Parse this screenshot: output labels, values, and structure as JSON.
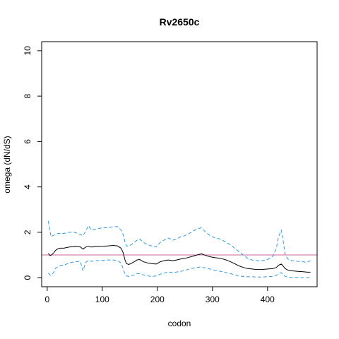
{
  "chart_data": {
    "type": "line",
    "title": "Rv2650c",
    "xlabel": "codon",
    "ylabel": "omega (dN/dS)",
    "xlim": [
      -10,
      490
    ],
    "ylim": [
      -0.4,
      10.4
    ],
    "xticks": [
      0,
      100,
      200,
      300,
      400
    ],
    "yticks": [
      0,
      2,
      4,
      6,
      8,
      10
    ],
    "reference_line": {
      "y": 1,
      "color": "#cc6699"
    },
    "grid": false,
    "series": [
      {
        "role": "estimate",
        "color": "#000000",
        "style": "solid",
        "x": [
          2,
          5,
          8,
          12,
          15,
          20,
          25,
          30,
          40,
          50,
          60,
          65,
          70,
          75,
          80,
          90,
          100,
          110,
          120,
          128,
          134,
          138,
          141,
          144,
          148,
          152,
          158,
          163,
          168,
          175,
          182,
          190,
          198,
          205,
          212,
          220,
          228,
          235,
          242,
          250,
          258,
          265,
          272,
          280,
          288,
          296,
          305,
          315,
          325,
          333,
          340,
          348,
          356,
          364,
          372,
          380,
          390,
          400,
          410,
          416,
          420,
          425,
          428,
          432,
          437,
          445,
          455,
          465,
          472,
          478
        ],
        "y": [
          1.07,
          0.98,
          1.0,
          1.1,
          1.2,
          1.28,
          1.3,
          1.3,
          1.35,
          1.37,
          1.36,
          1.26,
          1.35,
          1.38,
          1.35,
          1.37,
          1.38,
          1.4,
          1.42,
          1.4,
          1.3,
          1.1,
          0.8,
          0.62,
          0.58,
          0.62,
          0.7,
          0.78,
          0.8,
          0.7,
          0.65,
          0.62,
          0.6,
          0.7,
          0.75,
          0.78,
          0.75,
          0.78,
          0.82,
          0.85,
          0.9,
          0.95,
          1.0,
          1.05,
          0.98,
          0.92,
          0.88,
          0.85,
          0.78,
          0.7,
          0.62,
          0.52,
          0.45,
          0.4,
          0.38,
          0.36,
          0.36,
          0.38,
          0.4,
          0.45,
          0.55,
          0.6,
          0.52,
          0.4,
          0.33,
          0.3,
          0.28,
          0.26,
          0.24,
          0.24
        ]
      },
      {
        "role": "upper",
        "color": "#3399dd",
        "style": "dashed",
        "x": [
          2,
          4,
          7,
          10,
          15,
          20,
          25,
          30,
          40,
          50,
          60,
          65,
          70,
          75,
          80,
          90,
          100,
          110,
          120,
          128,
          134,
          138,
          141,
          144,
          148,
          152,
          158,
          163,
          168,
          175,
          182,
          190,
          198,
          205,
          212,
          220,
          228,
          235,
          242,
          250,
          258,
          265,
          272,
          280,
          288,
          296,
          305,
          315,
          325,
          333,
          340,
          348,
          356,
          364,
          372,
          380,
          390,
          400,
          410,
          416,
          420,
          425,
          428,
          432,
          437,
          445,
          455,
          465,
          472,
          478
        ],
        "y": [
          2.5,
          2.2,
          1.8,
          1.85,
          1.9,
          1.95,
          1.95,
          1.95,
          2.0,
          2.0,
          1.9,
          1.85,
          2.05,
          2.3,
          2.1,
          2.15,
          2.2,
          2.2,
          2.25,
          2.25,
          2.1,
          1.9,
          1.6,
          1.4,
          1.38,
          1.45,
          1.55,
          1.65,
          1.7,
          1.55,
          1.45,
          1.4,
          1.35,
          1.55,
          1.65,
          1.75,
          1.65,
          1.7,
          1.8,
          1.85,
          1.95,
          2.05,
          2.15,
          2.2,
          2.0,
          1.85,
          1.75,
          1.7,
          1.55,
          1.45,
          1.3,
          1.15,
          1.0,
          0.85,
          0.78,
          0.75,
          0.75,
          0.8,
          0.95,
          1.3,
          1.8,
          2.1,
          1.7,
          1.0,
          0.82,
          0.75,
          0.72,
          0.7,
          0.68,
          0.75
        ]
      },
      {
        "role": "lower",
        "color": "#3399dd",
        "style": "dashed",
        "x": [
          2,
          5,
          8,
          12,
          15,
          20,
          25,
          30,
          40,
          50,
          60,
          65,
          70,
          75,
          80,
          90,
          100,
          110,
          120,
          128,
          134,
          138,
          141,
          144,
          148,
          152,
          158,
          163,
          168,
          175,
          182,
          190,
          198,
          205,
          212,
          220,
          228,
          235,
          242,
          250,
          258,
          265,
          272,
          280,
          288,
          296,
          305,
          315,
          325,
          333,
          340,
          348,
          356,
          364,
          372,
          380,
          390,
          400,
          410,
          416,
          420,
          425,
          428,
          432,
          437,
          445,
          455,
          465,
          472,
          478
        ],
        "y": [
          0.2,
          0.12,
          0.1,
          0.25,
          0.4,
          0.5,
          0.55,
          0.55,
          0.65,
          0.7,
          0.72,
          0.3,
          0.68,
          0.75,
          0.72,
          0.75,
          0.76,
          0.78,
          0.78,
          0.75,
          0.65,
          0.4,
          0.15,
          0.08,
          0.05,
          0.08,
          0.12,
          0.18,
          0.18,
          0.12,
          0.08,
          0.05,
          0.08,
          0.15,
          0.2,
          0.25,
          0.22,
          0.25,
          0.28,
          0.32,
          0.38,
          0.42,
          0.45,
          0.48,
          0.42,
          0.38,
          0.32,
          0.28,
          0.22,
          0.18,
          0.12,
          0.08,
          0.05,
          0.04,
          0.04,
          0.03,
          0.03,
          0.04,
          0.06,
          0.1,
          0.18,
          0.22,
          0.15,
          0.06,
          0.02,
          0.01,
          0.01,
          0.0,
          0.0,
          0.02
        ]
      }
    ]
  }
}
